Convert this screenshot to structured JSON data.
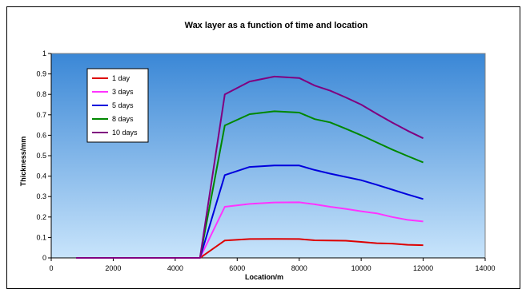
{
  "chart_data": {
    "type": "line",
    "title": "Wax layer as a function of time and location",
    "xlabel": "Location/m",
    "ylabel": "Thickness/mm",
    "xlim": [
      0,
      14000
    ],
    "ylim": [
      0,
      1
    ],
    "x_ticks": [
      "0",
      "2000",
      "4000",
      "6000",
      "8000",
      "10000",
      "12000",
      "14000"
    ],
    "y_ticks": [
      "0",
      "0.1",
      "0.2",
      "0.3",
      "0.4",
      "0.5",
      "0.6",
      "0.7",
      "0.8",
      "0.9",
      "1"
    ],
    "grid": false,
    "legend_position": "top-left",
    "x": [
      800,
      1600,
      2400,
      3200,
      4000,
      4800,
      5600,
      6400,
      7200,
      8000,
      8500,
      9000,
      9500,
      10000,
      10500,
      11000,
      11500,
      12000
    ],
    "series": [
      {
        "name": "1 day",
        "color": "#dd0000",
        "values": [
          0,
          0,
          0,
          0,
          0,
          0,
          0.085,
          0.092,
          0.093,
          0.092,
          0.086,
          0.085,
          0.084,
          0.078,
          0.072,
          0.07,
          0.064,
          0.062
        ]
      },
      {
        "name": "3 days",
        "color": "#ff33ff",
        "values": [
          0,
          0,
          0,
          0,
          0,
          0,
          0.25,
          0.264,
          0.271,
          0.272,
          0.262,
          0.25,
          0.24,
          0.228,
          0.218,
          0.2,
          0.186,
          0.178
        ]
      },
      {
        "name": "5 days",
        "color": "#0000dd",
        "values": [
          0,
          0,
          0,
          0,
          0,
          0,
          0.405,
          0.445,
          0.452,
          0.452,
          0.43,
          0.412,
          0.396,
          0.38,
          0.358,
          0.334,
          0.31,
          0.288
        ]
      },
      {
        "name": "8 days",
        "color": "#008800",
        "values": [
          0,
          0,
          0,
          0,
          0,
          0,
          0.648,
          0.703,
          0.717,
          0.711,
          0.679,
          0.663,
          0.632,
          0.6,
          0.565,
          0.53,
          0.498,
          0.467
        ]
      },
      {
        "name": "10 days",
        "color": "#800080",
        "values": [
          0,
          0,
          0,
          0,
          0,
          0,
          0.8,
          0.863,
          0.887,
          0.88,
          0.843,
          0.818,
          0.785,
          0.75,
          0.705,
          0.662,
          0.622,
          0.585
        ]
      }
    ],
    "plot_area_gradient": [
      "#3a87d6",
      "#c8e4fb"
    ]
  }
}
